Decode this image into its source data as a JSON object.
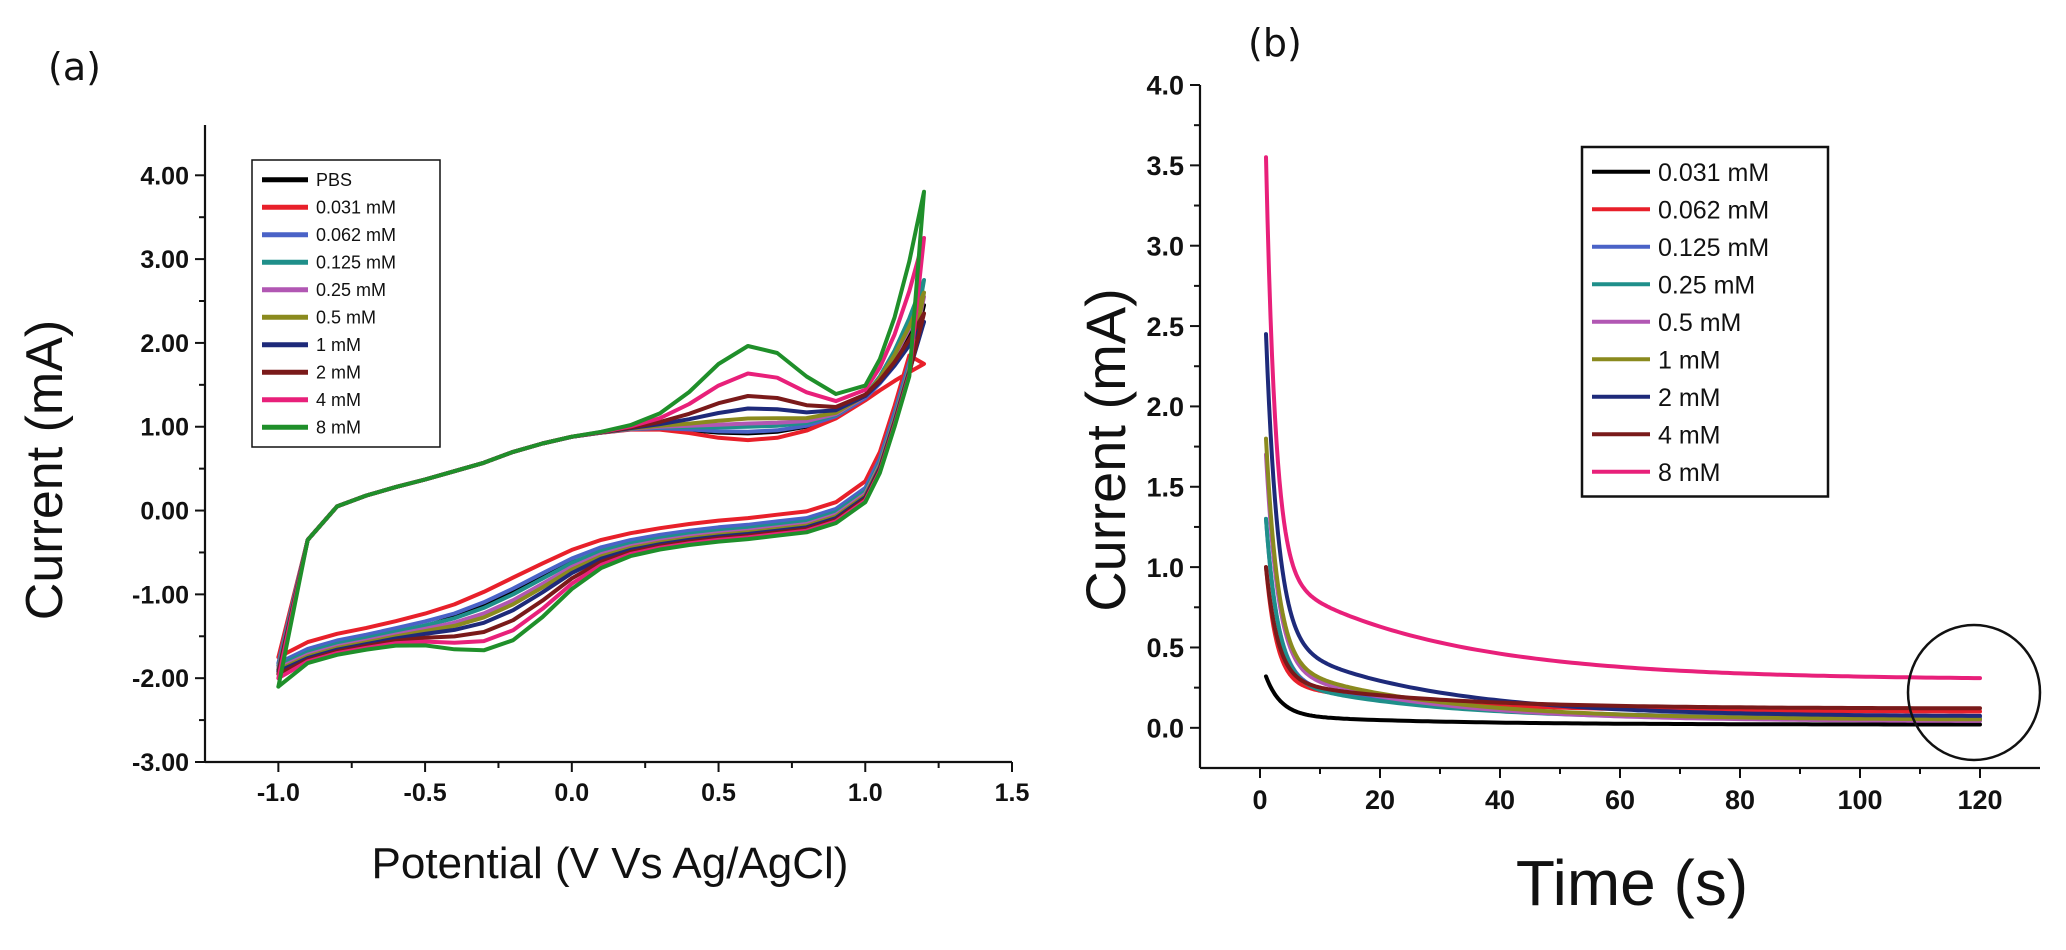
{
  "chart_data": [
    {
      "panel_label": "(a)",
      "type": "line",
      "title": "",
      "xlabel": "Potential (V Vs Ag/AgCl)",
      "ylabel": "Current (mA)",
      "xlim": [
        -1.25,
        1.5
      ],
      "ylim": [
        -3.0,
        4.6
      ],
      "xticks": [
        -1.0,
        -0.5,
        0.0,
        0.5,
        1.0,
        1.5
      ],
      "xtick_labels": [
        "-1.0",
        "-0.5",
        "0.0",
        "0.5",
        "1.0",
        "1.5"
      ],
      "yticks": [
        -3,
        -2,
        -1,
        0,
        1,
        2,
        3,
        4
      ],
      "ytick_labels": [
        "-3.00",
        "-2.00",
        "-1.00",
        "0.00",
        "1.00",
        "2.00",
        "3.00",
        "4.00"
      ],
      "legend_position": "top-left",
      "grid": false,
      "cv_template": {
        "x": [
          -1.0,
          -0.9,
          -0.8,
          -0.7,
          -0.6,
          -0.5,
          -0.4,
          -0.3,
          -0.2,
          -0.1,
          0.0,
          0.1,
          0.2,
          0.3,
          0.4,
          0.5,
          0.6,
          0.7,
          0.8,
          0.9,
          1.0,
          1.05,
          1.1,
          1.15,
          1.2
        ],
        "upper_base": [
          -1.9,
          -0.35,
          0.05,
          0.18,
          0.28,
          0.37,
          0.47,
          0.57,
          0.7,
          0.8,
          0.88,
          0.93,
          0.97,
          0.98,
          0.96,
          0.93,
          0.92,
          0.94,
          1.0,
          1.12,
          1.35,
          1.55,
          1.8,
          2.1,
          2.45
        ],
        "lower_base": [
          -1.9,
          -1.72,
          -1.62,
          -1.55,
          -1.47,
          -1.38,
          -1.27,
          -1.12,
          -0.95,
          -0.78,
          -0.62,
          -0.5,
          -0.42,
          -0.36,
          -0.31,
          -0.27,
          -0.24,
          -0.2,
          -0.16,
          -0.05,
          0.2,
          0.55,
          1.1,
          1.7,
          2.45
        ],
        "upper_peak_center": 0.62,
        "upper_peak_width": 0.17,
        "lower_peak_center": -0.22,
        "lower_peak_width": 0.17
      },
      "series": [
        {
          "name": "PBS",
          "color": "#000000",
          "upper_peak": 0.0,
          "lower_peak": 0.0,
          "start": -1.9,
          "end_gain": 0.0,
          "lower_shift": 0.0
        },
        {
          "name": "0.031 mM",
          "color": "#e8202a",
          "upper_peak": -0.08,
          "lower_peak": 0.0,
          "start": -1.75,
          "end_gain": -0.7,
          "lower_shift": 0.15
        },
        {
          "name": "0.062 mM",
          "color": "#4a63c7",
          "upper_peak": 0.02,
          "lower_peak": -0.05,
          "start": -1.82,
          "end_gain": -0.2,
          "lower_shift": 0.07
        },
        {
          "name": "0.125 mM",
          "color": "#1f8f8a",
          "upper_peak": 0.08,
          "lower_peak": -0.08,
          "start": -1.85,
          "end_gain": 0.3,
          "lower_shift": 0.03
        },
        {
          "name": "0.25 mM",
          "color": "#b157b3",
          "upper_peak": 0.12,
          "lower_peak": -0.12,
          "start": -1.88,
          "end_gain": 0.1,
          "lower_shift": 0.0
        },
        {
          "name": "0.5 mM",
          "color": "#8a8a1e",
          "upper_peak": 0.18,
          "lower_peak": -0.15,
          "start": -1.9,
          "end_gain": 0.15,
          "lower_shift": -0.02
        },
        {
          "name": "1 mM",
          "color": "#1e2a7a",
          "upper_peak": 0.3,
          "lower_peak": -0.2,
          "start": -1.92,
          "end_gain": -0.2,
          "lower_shift": -0.04
        },
        {
          "name": "2 mM",
          "color": "#7a1a1a",
          "upper_peak": 0.45,
          "lower_peak": -0.3,
          "start": -1.95,
          "end_gain": -0.1,
          "lower_shift": -0.06
        },
        {
          "name": "4 mM",
          "color": "#e8207a",
          "upper_peak": 0.72,
          "lower_peak": -0.4,
          "start": -2.0,
          "end_gain": 0.8,
          "lower_shift": -0.08
        },
        {
          "name": "8 mM",
          "color": "#1f8f2a",
          "upper_peak": 1.05,
          "lower_peak": -0.5,
          "start": -2.1,
          "end_gain": 1.35,
          "lower_shift": -0.1
        }
      ]
    },
    {
      "panel_label": "(b)",
      "type": "line",
      "title": "",
      "xlabel": "Time (s)",
      "ylabel": "Current (mA)",
      "xlim": [
        -10,
        130
      ],
      "ylim": [
        -0.25,
        4.0
      ],
      "xticks": [
        0,
        20,
        40,
        60,
        80,
        100,
        120
      ],
      "xtick_labels": [
        "0",
        "20",
        "40",
        "60",
        "80",
        "100",
        "120"
      ],
      "yticks": [
        0.0,
        0.5,
        1.0,
        1.5,
        2.0,
        2.5,
        3.0,
        3.5,
        4.0
      ],
      "ytick_labels": [
        "0.0",
        "0.5",
        "1.0",
        "1.5",
        "2.0",
        "2.5",
        "3.0",
        "3.5",
        "4.0"
      ],
      "legend_position": "top-right",
      "grid": false,
      "annotation": {
        "type": "circle",
        "center": [
          119,
          0.22
        ],
        "radius_x": 11,
        "radius_y": 0.42
      },
      "series": [
        {
          "name": "0.031 mM",
          "color": "#000000",
          "peak": 0.32,
          "steady": 0.02,
          "tau_fast": 2.5,
          "tau_slow": 25
        },
        {
          "name": "0.062 mM",
          "color": "#e8202a",
          "peak": 1.0,
          "steady": 0.1,
          "tau_fast": 1.8,
          "tau_slow": 25
        },
        {
          "name": "0.125 mM",
          "color": "#4a63c7",
          "peak": 1.3,
          "steady": 0.06,
          "tau_fast": 2.0,
          "tau_slow": 25
        },
        {
          "name": "0.25 mM",
          "color": "#1f8f8a",
          "peak": 1.3,
          "steady": 0.05,
          "tau_fast": 2.0,
          "tau_slow": 25
        },
        {
          "name": "0.5 mM",
          "color": "#b157b3",
          "peak": 1.7,
          "steady": 0.04,
          "tau_fast": 2.0,
          "tau_slow": 25
        },
        {
          "name": "1 mM",
          "color": "#8a8a1e",
          "peak": 1.8,
          "steady": 0.05,
          "tau_fast": 2.0,
          "tau_slow": 25
        },
        {
          "name": "2 mM",
          "color": "#1e2a7a",
          "peak": 2.45,
          "steady": 0.07,
          "tau_fast": 2.0,
          "tau_slow": 25
        },
        {
          "name": "4 mM",
          "color": "#7a1a1a",
          "peak": 1.0,
          "steady": 0.12,
          "tau_fast": 2.0,
          "tau_slow": 25
        },
        {
          "name": "8 mM",
          "color": "#e8207a",
          "peak": 3.55,
          "steady": 0.3,
          "tau_fast": 1.6,
          "tau_slow": 28
        }
      ]
    }
  ]
}
